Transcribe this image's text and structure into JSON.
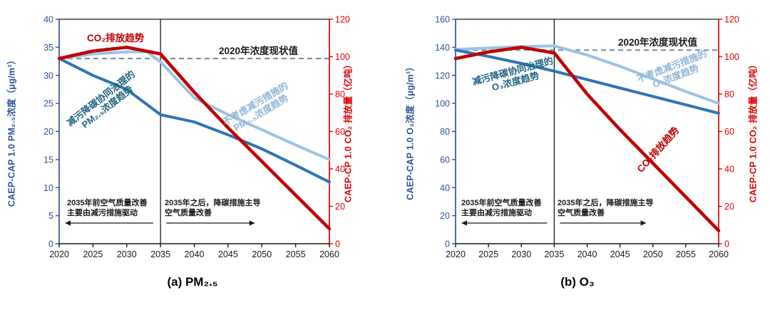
{
  "colors": {
    "co2_red": "#C00000",
    "dark_blue": "#2E74B5",
    "light_blue": "#9DC3E6",
    "dashed_gray": "#8090A4",
    "left_axis": "#2F5496",
    "right_axis": "#E00000",
    "axis_black": "#1A1A1A",
    "dark_label_text": "#1F6480",
    "light_label_text": "#8FB6D6"
  },
  "chart_data": [
    {
      "id": "pm25",
      "type": "line",
      "caption": "(a)  PM₂.₅",
      "x_ticks": [
        2020,
        2025,
        2030,
        2035,
        2040,
        2045,
        2050,
        2055,
        2060
      ],
      "left_axis": {
        "label": "CAEP-CAP 1.0 PM₂.₅浓度（μg/m³）",
        "min": 0,
        "max": 40,
        "ticks": [
          0,
          5,
          10,
          15,
          20,
          25,
          30,
          35,
          40
        ]
      },
      "right_axis": {
        "label": "CAEP-CP 1.0 CO₂ 排放量（亿吨）",
        "min": 0,
        "max": 120,
        "ticks": [
          0,
          20,
          40,
          60,
          80,
          100,
          120
        ]
      },
      "reference_line": {
        "label": "2020年浓度现状值",
        "value": 33,
        "axis": "left"
      },
      "event_line_x": 2035,
      "series": [
        {
          "name": "不考虑减污措施的PM₂.₅浓度趋势",
          "axis": "left",
          "color_key": "light_blue",
          "points": [
            [
              2020,
              33
            ],
            [
              2025,
              33.8
            ],
            [
              2030,
              34.2
            ],
            [
              2033,
              34.2
            ],
            [
              2035,
              32.4
            ],
            [
              2040,
              26
            ],
            [
              2045,
              23
            ],
            [
              2050,
              20.3
            ],
            [
              2055,
              17.6
            ],
            [
              2060,
              15
            ]
          ]
        },
        {
          "name": "减污降碳协同治理的PM₂.₅浓度趋势",
          "axis": "left",
          "color_key": "dark_blue",
          "points": [
            [
              2020,
              33
            ],
            [
              2025,
              30
            ],
            [
              2030,
              27.5
            ],
            [
              2035,
              23
            ],
            [
              2040,
              21.7
            ],
            [
              2045,
              19.4
            ],
            [
              2050,
              16.9
            ],
            [
              2055,
              14
            ],
            [
              2060,
              11
            ]
          ]
        },
        {
          "name": "CO₂排放趋势",
          "axis": "right",
          "color_key": "co2_red",
          "points": [
            [
              2020,
              99
            ],
            [
              2025,
              103
            ],
            [
              2030,
              105
            ],
            [
              2035,
              101.5
            ],
            [
              2040,
              81
            ],
            [
              2045,
              62
            ],
            [
              2050,
              44
            ],
            [
              2055,
              26
            ],
            [
              2060,
              8
            ]
          ]
        }
      ],
      "labels": {
        "co2": "CO₂排放趋势",
        "reference": "2020年浓度现状值",
        "co_control_line1": "减污降碳协同治理的",
        "co_control_line2": "PM₂.₅浓度趋势",
        "no_control_line1": "不考虑减污措施的",
        "no_control_line2": "PM₂.₅浓度趋势",
        "pre2035_line1": "2035年前空气质量改善",
        "pre2035_line2": "主要由减污措施驱动",
        "post2035_line1": "2035年之后，降碳措施主导",
        "post2035_line2": "空气质量改善"
      }
    },
    {
      "id": "o3",
      "type": "line",
      "caption": "(b)  O₃",
      "x_ticks": [
        2020,
        2025,
        2030,
        2035,
        2040,
        2045,
        2050,
        2055,
        2060
      ],
      "left_axis": {
        "label": "CAEP-CAP 1.0 O₃浓度（μg/m³）",
        "min": 0,
        "max": 160,
        "ticks": [
          0,
          20,
          40,
          60,
          80,
          100,
          120,
          140,
          160
        ]
      },
      "right_axis": {
        "label": "CAEP-CP 1.0 CO₂ 排放量（亿吨）",
        "min": 0,
        "max": 120,
        "ticks": [
          0,
          20,
          40,
          60,
          80,
          100,
          120
        ]
      },
      "reference_line": {
        "label": "2020年浓度现状值",
        "value": 138,
        "axis": "left"
      },
      "event_line_x": 2035,
      "series": [
        {
          "name": "不考虑减污措施的O₃浓度趋势",
          "axis": "left",
          "color_key": "light_blue",
          "points": [
            [
              2020,
              138.5
            ],
            [
              2025,
              139.5
            ],
            [
              2030,
              140.5
            ],
            [
              2035,
              141
            ],
            [
              2040,
              134.5
            ],
            [
              2045,
              126.5
            ],
            [
              2050,
              117.5
            ],
            [
              2055,
              108.5
            ],
            [
              2060,
              100
            ]
          ]
        },
        {
          "name": "减污降碳协同治理的O₃浓度趋势",
          "axis": "left",
          "color_key": "dark_blue",
          "points": [
            [
              2020,
              138
            ],
            [
              2025,
              133.5
            ],
            [
              2030,
              128.5
            ],
            [
              2035,
              123
            ],
            [
              2040,
              117
            ],
            [
              2045,
              111
            ],
            [
              2050,
              105
            ],
            [
              2055,
              99
            ],
            [
              2060,
              93
            ]
          ]
        },
        {
          "name": "CO₂排放趋势",
          "axis": "right",
          "color_key": "co2_red",
          "points": [
            [
              2020,
              99
            ],
            [
              2025,
              102.5
            ],
            [
              2030,
              105
            ],
            [
              2035,
              102
            ],
            [
              2040,
              80
            ],
            [
              2045,
              61
            ],
            [
              2050,
              43
            ],
            [
              2055,
              25
            ],
            [
              2060,
              7
            ]
          ]
        }
      ],
      "labels": {
        "co2": "CO₂排放趋势",
        "reference": "2020年浓度现状值",
        "co_control_line1": "减污降碳协同治理的",
        "co_control_line2": "O₃浓度趋势",
        "no_control_line1": "不考虑减污措施的",
        "no_control_line2": "O₃浓度趋势",
        "pre2035_line1": "2035年前空气质量改善",
        "pre2035_line2": "主要由减污措施驱动",
        "post2035_line1": "2035年之后，降碳措施主导",
        "post2035_line2": "空气质量改善"
      }
    }
  ]
}
